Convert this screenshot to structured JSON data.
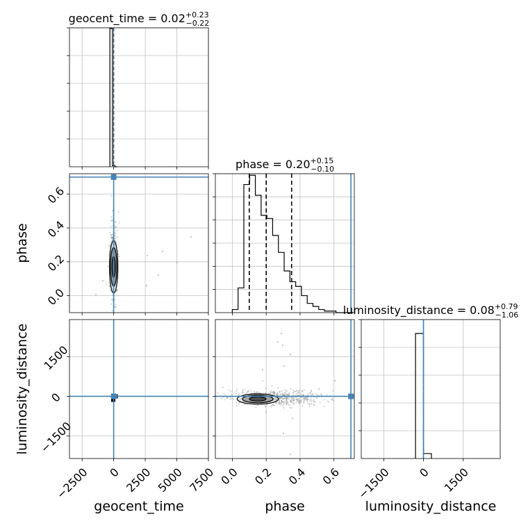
{
  "chart_data": {
    "type": "corner",
    "parameters": [
      "geocent_time",
      "phase",
      "luminosity_distance"
    ],
    "truths": {
      "geocent_time": 0,
      "phase": 0.7,
      "luminosity_distance": 0
    },
    "colors": {
      "truth": "#4682b4",
      "hist": "#000000",
      "grid": "#c0c0c0",
      "points": "#808080"
    },
    "grid": true,
    "titles": [
      {
        "param": "geocent_time",
        "label": "geocent_time = 0.02",
        "plus": "+0.23",
        "minus": "−0.22"
      },
      {
        "param": "phase",
        "label": "phase = 0.20",
        "plus": "+0.15",
        "minus": "−0.10"
      },
      {
        "param": "luminosity_distance",
        "label": "luminosity_distance = 0.08",
        "plus": "+0.79",
        "minus": "−1.06"
      }
    ],
    "axes": {
      "geocent_time": {
        "range": [
          -3500,
          7500
        ],
        "ticks": [
          -2500,
          0,
          2500,
          5000,
          7500
        ],
        "tick_labels": [
          "−2500",
          "0",
          "2500",
          "5000",
          "7500"
        ]
      },
      "phase": {
        "range": [
          -0.1,
          0.72
        ],
        "ticks": [
          0.0,
          0.2,
          0.4,
          0.6
        ],
        "tick_labels": [
          "0.0",
          "0.2",
          "0.4",
          "0.6"
        ]
      },
      "luminosity_distance": {
        "range": [
          -2350,
          2900
        ],
        "ticks": [
          -1500,
          0,
          1500
        ],
        "tick_labels": [
          "−1500",
          "0",
          "1500"
        ]
      }
    },
    "hist_geocent_time": {
      "edges": [
        -300,
        -100,
        100,
        300
      ],
      "counts": [
        1.0,
        0.008,
        0.0
      ]
    },
    "hist_phase": {
      "edges": [
        0.0,
        0.034,
        0.068,
        0.102,
        0.136,
        0.17,
        0.204,
        0.238,
        0.272,
        0.306,
        0.34,
        0.374,
        0.408,
        0.442,
        0.476,
        0.51,
        0.544,
        0.578,
        0.612,
        0.646,
        0.68,
        0.714
      ],
      "counts": [
        0.02,
        0.16,
        0.83,
        0.89,
        0.76,
        0.63,
        0.61,
        0.5,
        0.39,
        0.27,
        0.2,
        0.17,
        0.11,
        0.06,
        0.04,
        0.02,
        0.01,
        0.01,
        0.0,
        0.0,
        0.0
      ],
      "quantiles": [
        0.1,
        0.2,
        0.35
      ]
    },
    "hist_luminosity_distance": {
      "edges": [
        -300,
        0,
        300
      ],
      "counts": [
        1.0,
        0.04
      ]
    },
    "contours": {
      "geocent_time_vs_phase": {
        "center": [
          0,
          0.17
        ],
        "spread": [
          80,
          0.09
        ]
      },
      "geocent_time_vs_luminosity_distance": {
        "center": [
          -100,
          -100
        ],
        "spread": [
          150,
          40
        ]
      },
      "phase_vs_luminosity_distance": {
        "center": [
          0.15,
          -100
        ],
        "spread": [
          0.09,
          35
        ]
      }
    }
  }
}
